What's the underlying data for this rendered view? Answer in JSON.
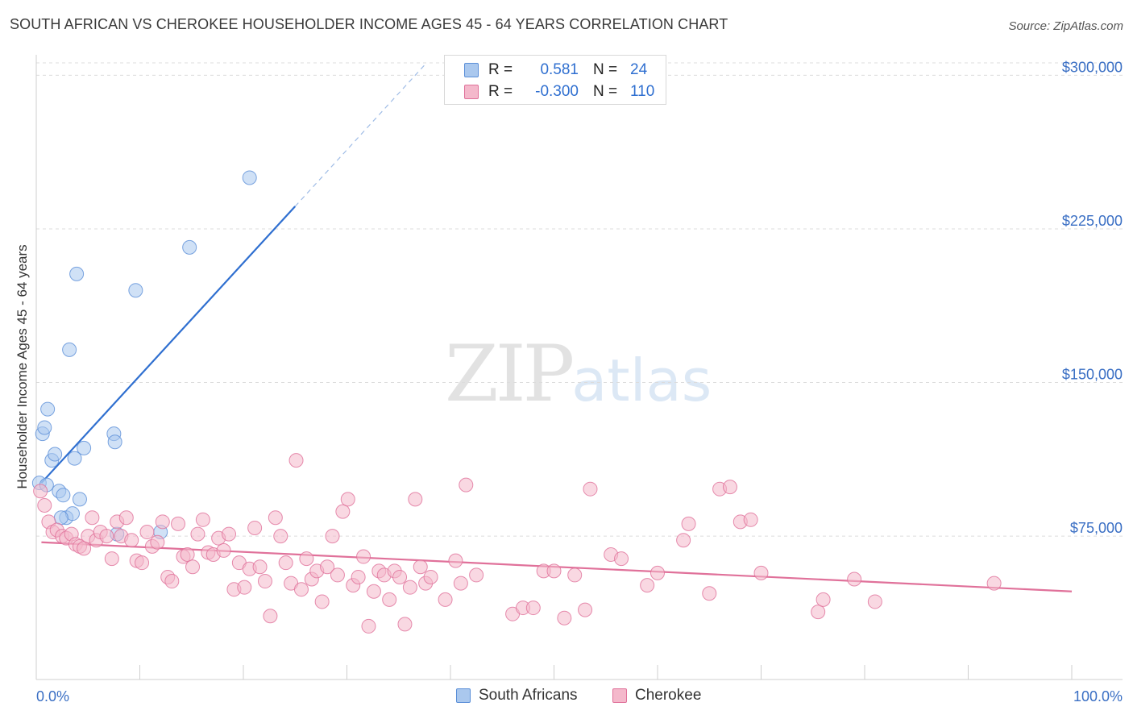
{
  "header": {
    "title": "SOUTH AFRICAN VS CHEROKEE HOUSEHOLDER INCOME AGES 45 - 64 YEARS CORRELATION CHART",
    "source": "Source: ZipAtlas.com"
  },
  "watermark": {
    "zip": "ZIP",
    "atlas": "atlas"
  },
  "legend": {
    "rows": [
      {
        "swatch_color": "#aac8ee",
        "r_label": "R =",
        "r_value": "0.581",
        "n_label": "N =",
        "n_value": "24"
      },
      {
        "swatch_color": "#f4b8cb",
        "r_label": "R =",
        "r_value": "-0.300",
        "n_label": "N =",
        "n_value": "110"
      }
    ]
  },
  "bottom_legend": {
    "items": [
      {
        "label": "South Africans",
        "color": "#aac8ee"
      },
      {
        "label": "Cherokee",
        "color": "#f4b8cb"
      }
    ]
  },
  "chart_data": {
    "type": "scatter",
    "title": "SOUTH AFRICAN VS CHEROKEE HOUSEHOLDER INCOME AGES 45 - 64 YEARS CORRELATION CHART",
    "xlabel": "",
    "ylabel": "Householder Income Ages 45 - 64 years",
    "xlim": [
      0,
      100
    ],
    "ylim": [
      5000,
      310000
    ],
    "x_tick_labels": [
      "0.0%",
      "100.0%"
    ],
    "y_ticks": [
      75000,
      150000,
      225000,
      300000
    ],
    "y_tick_labels": [
      "$75,000",
      "$150,000",
      "$225,000",
      "$300,000"
    ],
    "grid": true,
    "series": [
      {
        "name": "South Africans",
        "color": "#5b8fd8",
        "fill": "#aac8ee",
        "trend": {
          "x": [
            0.5,
            25.0
          ],
          "y": [
            101000,
            236000
          ],
          "dash_to": [
            37.5,
            305000
          ]
        },
        "points": [
          [
            0.3,
            101000
          ],
          [
            0.6,
            125000
          ],
          [
            0.8,
            128000
          ],
          [
            1.1,
            137000
          ],
          [
            1.5,
            112000
          ],
          [
            1.8,
            115000
          ],
          [
            2.2,
            97000
          ],
          [
            2.6,
            95000
          ],
          [
            2.9,
            84000
          ],
          [
            3.2,
            166000
          ],
          [
            3.5,
            86000
          ],
          [
            3.7,
            113000
          ],
          [
            3.9,
            203000
          ],
          [
            4.2,
            93000
          ],
          [
            4.6,
            118000
          ],
          [
            7.5,
            125000
          ],
          [
            7.6,
            121000
          ],
          [
            7.8,
            76000
          ],
          [
            9.6,
            195000
          ],
          [
            12.0,
            77000
          ],
          [
            14.8,
            216000
          ],
          [
            20.6,
            250000
          ],
          [
            2.4,
            84000
          ],
          [
            1.0,
            100000
          ]
        ]
      },
      {
        "name": "Cherokee",
        "color": "#e0719a",
        "fill": "#f4b8cb",
        "trend": {
          "x": [
            0.5,
            100.0
          ],
          "y": [
            72000,
            48000
          ]
        },
        "points": [
          [
            0.4,
            97000
          ],
          [
            0.8,
            90000
          ],
          [
            1.2,
            82000
          ],
          [
            1.6,
            77000
          ],
          [
            2.0,
            78000
          ],
          [
            2.5,
            75000
          ],
          [
            2.9,
            74000
          ],
          [
            3.4,
            76000
          ],
          [
            3.8,
            71000
          ],
          [
            4.2,
            70000
          ],
          [
            4.6,
            69000
          ],
          [
            5.0,
            75000
          ],
          [
            5.4,
            84000
          ],
          [
            5.8,
            73000
          ],
          [
            6.2,
            77000
          ],
          [
            6.8,
            75000
          ],
          [
            7.3,
            64000
          ],
          [
            7.8,
            82000
          ],
          [
            8.2,
            75000
          ],
          [
            8.7,
            84000
          ],
          [
            9.2,
            73000
          ],
          [
            9.7,
            63000
          ],
          [
            10.2,
            62000
          ],
          [
            10.7,
            77000
          ],
          [
            11.2,
            70000
          ],
          [
            11.7,
            72000
          ],
          [
            12.2,
            82000
          ],
          [
            12.7,
            55000
          ],
          [
            13.1,
            53000
          ],
          [
            13.7,
            81000
          ],
          [
            14.2,
            65000
          ],
          [
            14.6,
            66000
          ],
          [
            15.1,
            60000
          ],
          [
            15.6,
            76000
          ],
          [
            16.1,
            83000
          ],
          [
            16.6,
            67000
          ],
          [
            17.1,
            66000
          ],
          [
            17.6,
            74000
          ],
          [
            18.1,
            68000
          ],
          [
            18.6,
            76000
          ],
          [
            19.1,
            49000
          ],
          [
            19.6,
            62000
          ],
          [
            20.1,
            50000
          ],
          [
            20.6,
            59000
          ],
          [
            21.1,
            79000
          ],
          [
            21.6,
            60000
          ],
          [
            22.1,
            53000
          ],
          [
            22.6,
            36000
          ],
          [
            23.1,
            84000
          ],
          [
            23.6,
            75000
          ],
          [
            24.1,
            62000
          ],
          [
            24.6,
            52000
          ],
          [
            25.1,
            112000
          ],
          [
            25.6,
            49000
          ],
          [
            26.1,
            64000
          ],
          [
            26.6,
            54000
          ],
          [
            27.1,
            58000
          ],
          [
            27.6,
            43000
          ],
          [
            28.1,
            60000
          ],
          [
            28.6,
            75000
          ],
          [
            29.1,
            56000
          ],
          [
            29.6,
            87000
          ],
          [
            30.1,
            93000
          ],
          [
            30.6,
            51000
          ],
          [
            31.1,
            55000
          ],
          [
            31.6,
            65000
          ],
          [
            32.1,
            31000
          ],
          [
            32.6,
            48000
          ],
          [
            33.1,
            58000
          ],
          [
            33.6,
            56000
          ],
          [
            34.1,
            44000
          ],
          [
            34.6,
            58000
          ],
          [
            35.1,
            55000
          ],
          [
            35.6,
            32000
          ],
          [
            36.1,
            50000
          ],
          [
            36.6,
            93000
          ],
          [
            37.1,
            60000
          ],
          [
            37.6,
            52000
          ],
          [
            38.1,
            55000
          ],
          [
            39.5,
            44000
          ],
          [
            40.5,
            63000
          ],
          [
            41.0,
            52000
          ],
          [
            41.5,
            100000
          ],
          [
            42.5,
            56000
          ],
          [
            46.0,
            37000
          ],
          [
            47.0,
            40000
          ],
          [
            48.0,
            40000
          ],
          [
            49.0,
            58000
          ],
          [
            50.0,
            58000
          ],
          [
            51.0,
            35000
          ],
          [
            52.0,
            56000
          ],
          [
            53.0,
            39000
          ],
          [
            53.5,
            98000
          ],
          [
            55.5,
            66000
          ],
          [
            56.5,
            64000
          ],
          [
            59.0,
            51000
          ],
          [
            60.0,
            57000
          ],
          [
            62.5,
            73000
          ],
          [
            63.0,
            81000
          ],
          [
            65.0,
            47000
          ],
          [
            66.0,
            98000
          ],
          [
            67.0,
            99000
          ],
          [
            68.0,
            82000
          ],
          [
            69.0,
            83000
          ],
          [
            70.0,
            57000
          ],
          [
            75.5,
            38000
          ],
          [
            76.0,
            44000
          ],
          [
            79.0,
            54000
          ],
          [
            81.0,
            43000
          ],
          [
            92.5,
            52000
          ]
        ]
      }
    ]
  }
}
